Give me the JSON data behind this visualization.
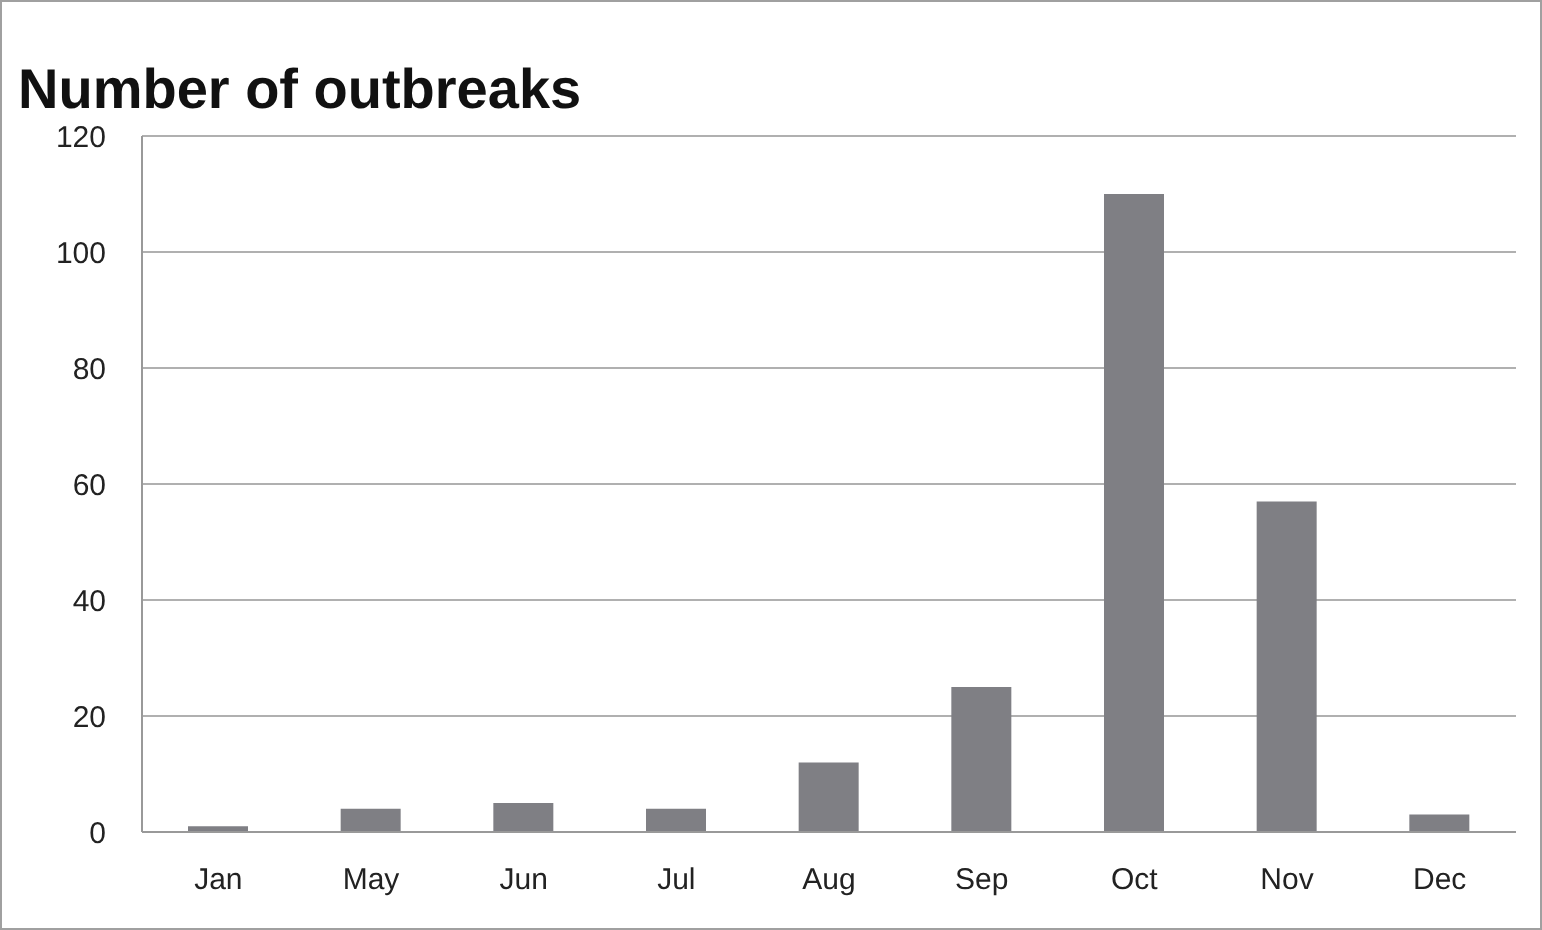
{
  "chart_data": {
    "type": "bar",
    "title": "Number of outbreaks",
    "categories": [
      "Jan",
      "May",
      "Jun",
      "Jul",
      "Aug",
      "Sep",
      "Oct",
      "Nov",
      "Dec"
    ],
    "values": [
      1,
      4,
      5,
      4,
      12,
      25,
      110,
      57,
      3
    ],
    "color": "#7f7f84",
    "ylim": [
      0,
      120
    ],
    "yticks": [
      0,
      20,
      40,
      60,
      80,
      100,
      120
    ],
    "grid": "y"
  }
}
